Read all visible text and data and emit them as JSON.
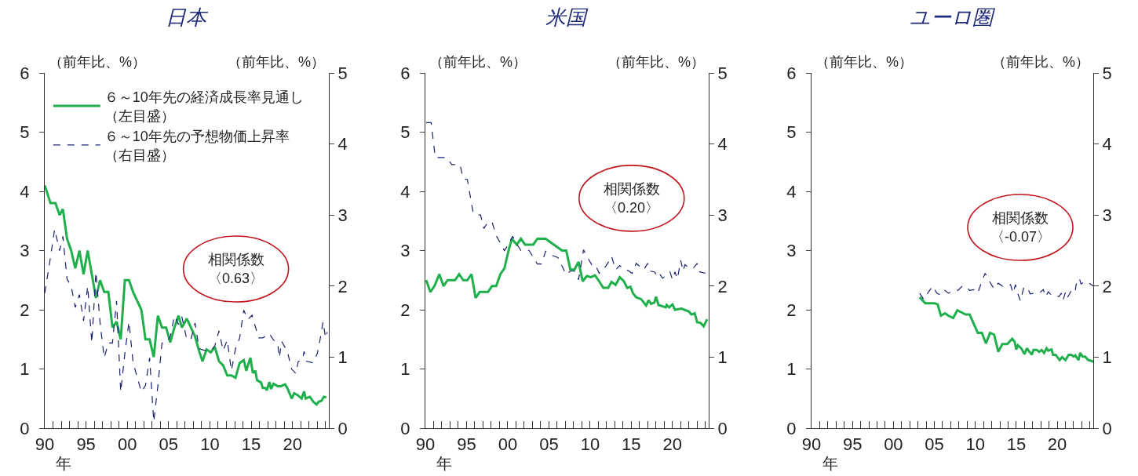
{
  "chart_data": [
    {
      "type": "line",
      "title": "日本",
      "ylabel": "（前年比、%）",
      "y2label": "（前年比、%）",
      "xlabel": "年",
      "legend": "top left",
      "annotations": [
        "相関係数",
        "〈0.63〉"
      ],
      "xlim": [
        1990,
        2024.4
      ],
      "ylim": [
        0,
        6
      ],
      "yticks": [
        0,
        1,
        2,
        3,
        4,
        5,
        6
      ],
      "y2lim": [
        0,
        5
      ],
      "y2ticks": [
        0,
        1,
        2,
        3,
        4,
        5
      ],
      "xticks": [
        {
          "value": 1990,
          "label": "90"
        },
        {
          "value": 1991,
          "label": null
        },
        {
          "value": 1992,
          "label": null
        },
        {
          "value": 1993,
          "label": null
        },
        {
          "value": 1994,
          "label": null
        },
        {
          "value": 1995,
          "label": "95"
        },
        {
          "value": 1996,
          "label": null
        },
        {
          "value": 1997,
          "label": null
        },
        {
          "value": 1998,
          "label": null
        },
        {
          "value": 1999,
          "label": null
        },
        {
          "value": 2000,
          "label": "00"
        },
        {
          "value": 2001,
          "label": null
        },
        {
          "value": 2002,
          "label": null
        },
        {
          "value": 2003,
          "label": null
        },
        {
          "value": 2004,
          "label": null
        },
        {
          "value": 2005,
          "label": "05"
        },
        {
          "value": 2006,
          "label": null
        },
        {
          "value": 2007,
          "label": null
        },
        {
          "value": 2008,
          "label": null
        },
        {
          "value": 2009,
          "label": null
        },
        {
          "value": 2010,
          "label": "10"
        },
        {
          "value": 2011,
          "label": null
        },
        {
          "value": 2012,
          "label": null
        },
        {
          "value": 2013,
          "label": null
        },
        {
          "value": 2014,
          "label": null
        },
        {
          "value": 2015,
          "label": "15"
        },
        {
          "value": 2016,
          "label": null
        },
        {
          "value": 2017,
          "label": null
        },
        {
          "value": 2018,
          "label": null
        },
        {
          "value": 2019,
          "label": null
        },
        {
          "value": 2020,
          "label": "20"
        },
        {
          "value": 2021,
          "label": null
        },
        {
          "value": 2022,
          "label": null
        },
        {
          "value": 2023,
          "label": null
        },
        {
          "value": 2024,
          "label": null
        }
      ],
      "series": [
        {
          "name": "６～10年先の経済成長率見通し（左目盛）",
          "color": "#1fb04c",
          "line_style": "solid",
          "x": [
            1990.0,
            1990.7,
            1991.3,
            1991.8,
            1992.2,
            1992.7,
            1993.2,
            1993.7,
            1994.2,
            1994.7,
            1995.2,
            1995.7,
            1996.2,
            1996.7,
            1997.2,
            1997.7,
            1998.2,
            1998.7,
            1999.2,
            1999.7,
            2000.2,
            2000.7,
            2001.7,
            2002.2,
            2002.7,
            2003.2,
            2003.7,
            2004.2,
            2004.7,
            2005.2,
            2005.7,
            2006.2,
            2006.6,
            2007.2,
            2007.7,
            2008.2,
            2008.7,
            2009.1,
            2009.6,
            2010.1,
            2010.6,
            2011.1,
            2011.6,
            2012.1,
            2012.6,
            2013.1,
            2013.6,
            2014.1,
            2014.4,
            2014.9,
            2015.2,
            2015.5,
            2015.7,
            2016.2,
            2016.4,
            2016.7,
            2016.9,
            2017.2,
            2017.4,
            2017.7,
            2018.2,
            2018.6,
            2019.1,
            2019.4,
            2019.9,
            2020.2,
            2020.6,
            2021.1,
            2021.4,
            2021.6,
            2022.1,
            2022.5,
            2022.9,
            2023.2,
            2023.5,
            2023.8,
            2024.1
          ],
          "values": [
            4.1,
            3.8,
            3.8,
            3.6,
            3.7,
            3.2,
            3.0,
            2.7,
            3.0,
            2.6,
            3.0,
            2.6,
            2.2,
            2.5,
            2.3,
            2.3,
            1.7,
            1.8,
            1.5,
            2.5,
            2.5,
            2.3,
            2.0,
            1.5,
            1.5,
            1.2,
            1.9,
            1.7,
            1.7,
            1.45,
            1.7,
            1.9,
            1.7,
            1.85,
            1.7,
            1.55,
            1.3,
            1.13,
            1.33,
            1.28,
            1.37,
            1.13,
            1.06,
            0.89,
            0.89,
            0.85,
            1.1,
            1.15,
            0.97,
            1.19,
            0.93,
            0.97,
            0.81,
            0.77,
            0.68,
            0.68,
            0.64,
            0.78,
            0.66,
            0.75,
            0.71,
            0.71,
            0.74,
            0.67,
            0.5,
            0.59,
            0.56,
            0.5,
            0.62,
            0.5,
            0.53,
            0.45,
            0.4,
            0.45,
            0.46,
            0.53,
            0.52
          ]
        },
        {
          "name": "６～10年先の予想物価上昇率（右目盛）",
          "color": "#1a2070",
          "line_style": "dashed",
          "axis": "y2",
          "x": [
            1990.0,
            1990.6,
            1991.2,
            1991.8,
            1992.2,
            1992.7,
            1993.2,
            1993.7,
            1994.2,
            1994.7,
            1995.2,
            1995.7,
            1996.2,
            1996.7,
            1997.2,
            1997.7,
            1998.2,
            1998.7,
            1999.2,
            1999.7,
            2000.2,
            2000.7,
            2001.7,
            2002.2,
            2002.7,
            2003.2,
            2003.7,
            2004.2,
            2004.7,
            2005.2,
            2005.7,
            2006.2,
            2006.6,
            2007.2,
            2007.7,
            2008.2,
            2008.7,
            2009.2,
            2010.1,
            2010.6,
            2011.1,
            2011.6,
            2012.1,
            2012.6,
            2013.1,
            2013.6,
            2014.1,
            2014.6,
            2015.1,
            2015.9,
            2016.4,
            2017.2,
            2017.7,
            2018.2,
            2018.4,
            2018.7,
            2019.4,
            2019.9,
            2020.4,
            2020.7,
            2021.2,
            2021.4,
            2021.7,
            2022.5,
            2023.0,
            2023.3,
            2023.7,
            2024.0,
            2024.2
          ],
          "values": [
            1.9,
            2.33,
            2.8,
            2.5,
            2.7,
            2.1,
            2.0,
            1.7,
            1.88,
            1.51,
            2.0,
            1.2,
            2.2,
            1.48,
            0.99,
            1.2,
            1.2,
            1.79,
            0.51,
            1.05,
            1.5,
            0.92,
            0.51,
            0.6,
            0.99,
            0.09,
            0.6,
            1.2,
            1.2,
            1.29,
            1.58,
            1.46,
            1.57,
            1.25,
            1.25,
            1.48,
            1.12,
            1.1,
            1.09,
            1.16,
            1.37,
            1.09,
            1.24,
            0.81,
            1.12,
            1.27,
            1.66,
            1.53,
            1.59,
            1.27,
            1.27,
            1.33,
            1.24,
            1.2,
            0.99,
            1.22,
            1.07,
            0.83,
            0.77,
            0.94,
            0.96,
            1.08,
            0.94,
            0.92,
            1.05,
            1.22,
            1.5,
            1.27,
            1.35
          ]
        }
      ]
    },
    {
      "type": "line",
      "title": "米国",
      "ylabel": "（前年比、%）",
      "y2label": "（前年比、%）",
      "xlabel": "年",
      "annotations": [
        "相関係数",
        "〈0.20〉"
      ],
      "xlim": [
        1990,
        2024.4
      ],
      "ylim": [
        0,
        6
      ],
      "yticks": [
        0,
        1,
        2,
        3,
        4,
        5,
        6
      ],
      "y2lim": [
        0,
        5
      ],
      "y2ticks": [
        0,
        1,
        2,
        3,
        4,
        5
      ],
      "xticks": [
        {
          "value": 1990,
          "label": "90"
        },
        {
          "value": 1991,
          "label": null
        },
        {
          "value": 1992,
          "label": null
        },
        {
          "value": 1993,
          "label": null
        },
        {
          "value": 1994,
          "label": null
        },
        {
          "value": 1995,
          "label": "95"
        },
        {
          "value": 1996,
          "label": null
        },
        {
          "value": 1997,
          "label": null
        },
        {
          "value": 1998,
          "label": null
        },
        {
          "value": 1999,
          "label": null
        },
        {
          "value": 2000,
          "label": "00"
        },
        {
          "value": 2001,
          "label": null
        },
        {
          "value": 2002,
          "label": null
        },
        {
          "value": 2003,
          "label": null
        },
        {
          "value": 2004,
          "label": null
        },
        {
          "value": 2005,
          "label": "05"
        },
        {
          "value": 2006,
          "label": null
        },
        {
          "value": 2007,
          "label": null
        },
        {
          "value": 2008,
          "label": null
        },
        {
          "value": 2009,
          "label": null
        },
        {
          "value": 2010,
          "label": "10"
        },
        {
          "value": 2011,
          "label": null
        },
        {
          "value": 2012,
          "label": null
        },
        {
          "value": 2013,
          "label": null
        },
        {
          "value": 2014,
          "label": null
        },
        {
          "value": 2015,
          "label": "15"
        },
        {
          "value": 2016,
          "label": null
        },
        {
          "value": 2017,
          "label": null
        },
        {
          "value": 2018,
          "label": null
        },
        {
          "value": 2019,
          "label": null
        },
        {
          "value": 2020,
          "label": "20"
        },
        {
          "value": 2021,
          "label": null
        },
        {
          "value": 2022,
          "label": null
        },
        {
          "value": 2023,
          "label": null
        },
        {
          "value": 2024,
          "label": null
        }
      ],
      "series": [
        {
          "color": "#1fb04c",
          "line_style": "solid",
          "x": [
            1990.1,
            1990.6,
            1991.1,
            1991.7,
            1992.2,
            1992.7,
            1993.6,
            1994.1,
            1994.6,
            1995.1,
            1995.6,
            1996.1,
            1996.6,
            1997.6,
            1998.1,
            1998.6,
            1999.1,
            1999.6,
            2000.1,
            2000.5,
            2001.1,
            2001.6,
            2002.1,
            2003.1,
            2003.6,
            2004.6,
            2005.1,
            2005.6,
            2006.1,
            2006.6,
            2007.1,
            2007.6,
            2008.1,
            2008.6,
            2009.1,
            2009.6,
            2010.1,
            2010.6,
            2011.1,
            2011.6,
            2012.2,
            2012.6,
            2013.1,
            2013.6,
            2014.1,
            2014.5,
            2014.9,
            2015.2,
            2015.6,
            2016.2,
            2016.8,
            2017.1,
            2017.4,
            2017.8,
            2018.0,
            2018.3,
            2019.2,
            2019.3,
            2019.6,
            2020.0,
            2020.3,
            2021.1,
            2022.0,
            2022.3,
            2022.7,
            2023.0,
            2023.4,
            2023.8,
            2024.2
          ],
          "values": [
            2.5,
            2.3,
            2.4,
            2.6,
            2.4,
            2.5,
            2.5,
            2.6,
            2.5,
            2.5,
            2.6,
            2.2,
            2.3,
            2.3,
            2.4,
            2.4,
            2.6,
            2.7,
            3.0,
            3.2,
            3.1,
            3.2,
            3.1,
            3.1,
            3.2,
            3.2,
            3.15,
            3.1,
            3.05,
            3.0,
            3.0,
            2.68,
            2.68,
            2.81,
            2.48,
            2.57,
            2.55,
            2.58,
            2.48,
            2.37,
            2.37,
            2.47,
            2.42,
            2.55,
            2.48,
            2.37,
            2.39,
            2.28,
            2.21,
            2.18,
            2.07,
            2.16,
            2.1,
            2.12,
            2.22,
            2.08,
            2.04,
            2.08,
            2.04,
            2.09,
            2.0,
            2.02,
            1.97,
            1.92,
            1.94,
            1.79,
            1.78,
            1.72,
            1.84
          ]
        },
        {
          "color": "#1a2070",
          "line_style": "dashed",
          "axis": "y2",
          "x": [
            1990.1,
            1990.7,
            1991.2,
            1992.6,
            1993.2,
            1994.2,
            1994.6,
            1995.1,
            1995.8,
            1996.2,
            1996.7,
            1997.1,
            1997.6,
            1998.1,
            1998.6,
            1999.6,
            2000.1,
            2000.6,
            2001.1,
            2001.6,
            2002.6,
            2003.6,
            2004.1,
            2004.6,
            2005.2,
            2006.1,
            2007.1,
            2007.6,
            2008.1,
            2008.6,
            2009.2,
            2009.7,
            2010.2,
            2010.6,
            2011.1,
            2011.6,
            2012.2,
            2012.6,
            2013.1,
            2013.6,
            2014.1,
            2014.6,
            2015.1,
            2015.6,
            2016.1,
            2016.5,
            2017.0,
            2017.3,
            2017.8,
            2018.2,
            2018.4,
            2018.8,
            2019.2,
            2019.7,
            2020.0,
            2020.3,
            2020.6,
            2021.0,
            2021.3,
            2021.5,
            2022.1,
            2022.5,
            2023.0,
            2023.3,
            2024.0
          ],
          "values": [
            4.3,
            4.3,
            3.81,
            3.81,
            3.71,
            3.71,
            3.51,
            3.5,
            3.03,
            3.0,
            3.0,
            2.81,
            2.9,
            2.9,
            2.71,
            2.5,
            2.59,
            2.7,
            2.59,
            2.5,
            2.5,
            2.31,
            2.31,
            2.49,
            2.44,
            2.4,
            2.16,
            2.21,
            2.21,
            2.09,
            2.51,
            2.4,
            2.3,
            2.31,
            2.18,
            2.23,
            2.33,
            2.42,
            2.23,
            2.29,
            2.23,
            2.22,
            2.18,
            2.32,
            2.27,
            2.23,
            2.32,
            2.21,
            2.2,
            2.14,
            2.18,
            2.11,
            2.15,
            2.2,
            2.09,
            2.2,
            2.1,
            2.36,
            2.21,
            2.3,
            2.25,
            2.25,
            2.32,
            2.2,
            2.18
          ]
        }
      ]
    },
    {
      "type": "line",
      "title": "ユーロ圏",
      "ylabel": "（前年比、%）",
      "y2label": "（前年比、%）",
      "xlabel": "年",
      "annotations": [
        "相関係数",
        "〈-0.07〉"
      ],
      "xlim": [
        1990,
        2024.4
      ],
      "ylim": [
        0,
        6
      ],
      "yticks": [
        0,
        1,
        2,
        3,
        4,
        5,
        6
      ],
      "y2lim": [
        0,
        5
      ],
      "y2ticks": [
        0,
        1,
        2,
        3,
        4,
        5
      ],
      "xticks": [
        {
          "value": 1990,
          "label": "90"
        },
        {
          "value": 1991,
          "label": null
        },
        {
          "value": 1992,
          "label": null
        },
        {
          "value": 1993,
          "label": null
        },
        {
          "value": 1994,
          "label": null
        },
        {
          "value": 1995,
          "label": "95"
        },
        {
          "value": 1996,
          "label": null
        },
        {
          "value": 1997,
          "label": null
        },
        {
          "value": 1998,
          "label": null
        },
        {
          "value": 1999,
          "label": null
        },
        {
          "value": 2000,
          "label": "00"
        },
        {
          "value": 2001,
          "label": null
        },
        {
          "value": 2002,
          "label": null
        },
        {
          "value": 2003,
          "label": null
        },
        {
          "value": 2004,
          "label": null
        },
        {
          "value": 2005,
          "label": "05"
        },
        {
          "value": 2006,
          "label": null
        },
        {
          "value": 2007,
          "label": null
        },
        {
          "value": 2008,
          "label": null
        },
        {
          "value": 2009,
          "label": null
        },
        {
          "value": 2010,
          "label": "10"
        },
        {
          "value": 2011,
          "label": null
        },
        {
          "value": 2012,
          "label": null
        },
        {
          "value": 2013,
          "label": null
        },
        {
          "value": 2014,
          "label": null
        },
        {
          "value": 2015,
          "label": "15"
        },
        {
          "value": 2016,
          "label": null
        },
        {
          "value": 2017,
          "label": null
        },
        {
          "value": 2018,
          "label": null
        },
        {
          "value": 2019,
          "label": null
        },
        {
          "value": 2020,
          "label": "20"
        },
        {
          "value": 2021,
          "label": null
        },
        {
          "value": 2022,
          "label": null
        },
        {
          "value": 2023,
          "label": null
        },
        {
          "value": 2024,
          "label": null
        }
      ],
      "series": [
        {
          "color": "#1fb04c",
          "line_style": "solid",
          "x": [
            2003.2,
            2003.9,
            2005.0,
            2005.4,
            2005.8,
            2006.3,
            2006.7,
            2007.3,
            2007.8,
            2008.4,
            2008.8,
            2009.3,
            2010.3,
            2010.8,
            2011.3,
            2011.8,
            2012.3,
            2012.8,
            2013.3,
            2013.9,
            2014.5,
            2014.8,
            2015.0,
            2015.2,
            2015.6,
            2016.0,
            2016.3,
            2016.5,
            2016.9,
            2017.1,
            2017.5,
            2017.8,
            2018.1,
            2018.4,
            2018.7,
            2018.9,
            2019.3,
            2019.5,
            2019.8,
            2020.3,
            2020.6,
            2021.0,
            2021.4,
            2021.7,
            2022.0,
            2022.2,
            2022.6,
            2022.8,
            2023.1,
            2023.4,
            2023.8,
            2024.1,
            2024.4
          ],
          "values": [
            2.21,
            2.11,
            2.11,
            2.09,
            1.9,
            1.94,
            1.9,
            1.86,
            1.99,
            1.95,
            1.92,
            1.92,
            1.61,
            1.61,
            1.43,
            1.61,
            1.58,
            1.29,
            1.42,
            1.42,
            1.51,
            1.46,
            1.33,
            1.4,
            1.35,
            1.25,
            1.35,
            1.31,
            1.24,
            1.32,
            1.32,
            1.29,
            1.32,
            1.27,
            1.35,
            1.31,
            1.33,
            1.24,
            1.24,
            1.15,
            1.2,
            1.15,
            1.24,
            1.24,
            1.21,
            1.23,
            1.15,
            1.27,
            1.21,
            1.21,
            1.15,
            1.14,
            1.12
          ]
        },
        {
          "color": "#1a2070",
          "line_style": "dashed",
          "axis": "y2",
          "x": [
            2003.2,
            2003.7,
            2004.3,
            2004.8,
            2005.3,
            2005.8,
            2006.3,
            2006.7,
            2007.3,
            2007.9,
            2008.4,
            2008.8,
            2009.3,
            2009.8,
            2010.3,
            2010.8,
            2011.2,
            2011.7,
            2012.3,
            2012.8,
            2013.3,
            2013.8,
            2014.3,
            2014.6,
            2014.9,
            2015.2,
            2015.5,
            2015.9,
            2016.3,
            2016.7,
            2017.3,
            2017.8,
            2018.3,
            2018.6,
            2018.9,
            2019.3,
            2019.7,
            2020.2,
            2020.5,
            2020.7,
            2021.0,
            2021.2,
            2021.5,
            2021.8,
            2022.2,
            2022.3,
            2022.7,
            2022.9,
            2023.3,
            2023.6,
            2023.9,
            2024.4
          ],
          "values": [
            1.9,
            1.81,
            1.92,
            2.0,
            1.9,
            1.87,
            1.94,
            1.9,
            1.93,
            1.94,
            2.0,
            2.0,
            1.94,
            1.95,
            1.9,
            2.07,
            2.18,
            2.07,
            1.96,
            2.04,
            2.0,
            2.0,
            2.02,
            1.9,
            2.02,
            1.89,
            1.79,
            1.97,
            1.99,
            1.89,
            1.9,
            1.9,
            1.95,
            1.85,
            1.92,
            1.87,
            1.87,
            1.85,
            1.9,
            1.8,
            1.91,
            1.83,
            1.89,
            1.96,
            1.93,
            2.02,
            2.11,
            2.03,
            2.06,
            2.06,
            2.04,
            2.0
          ]
        }
      ]
    }
  ]
}
